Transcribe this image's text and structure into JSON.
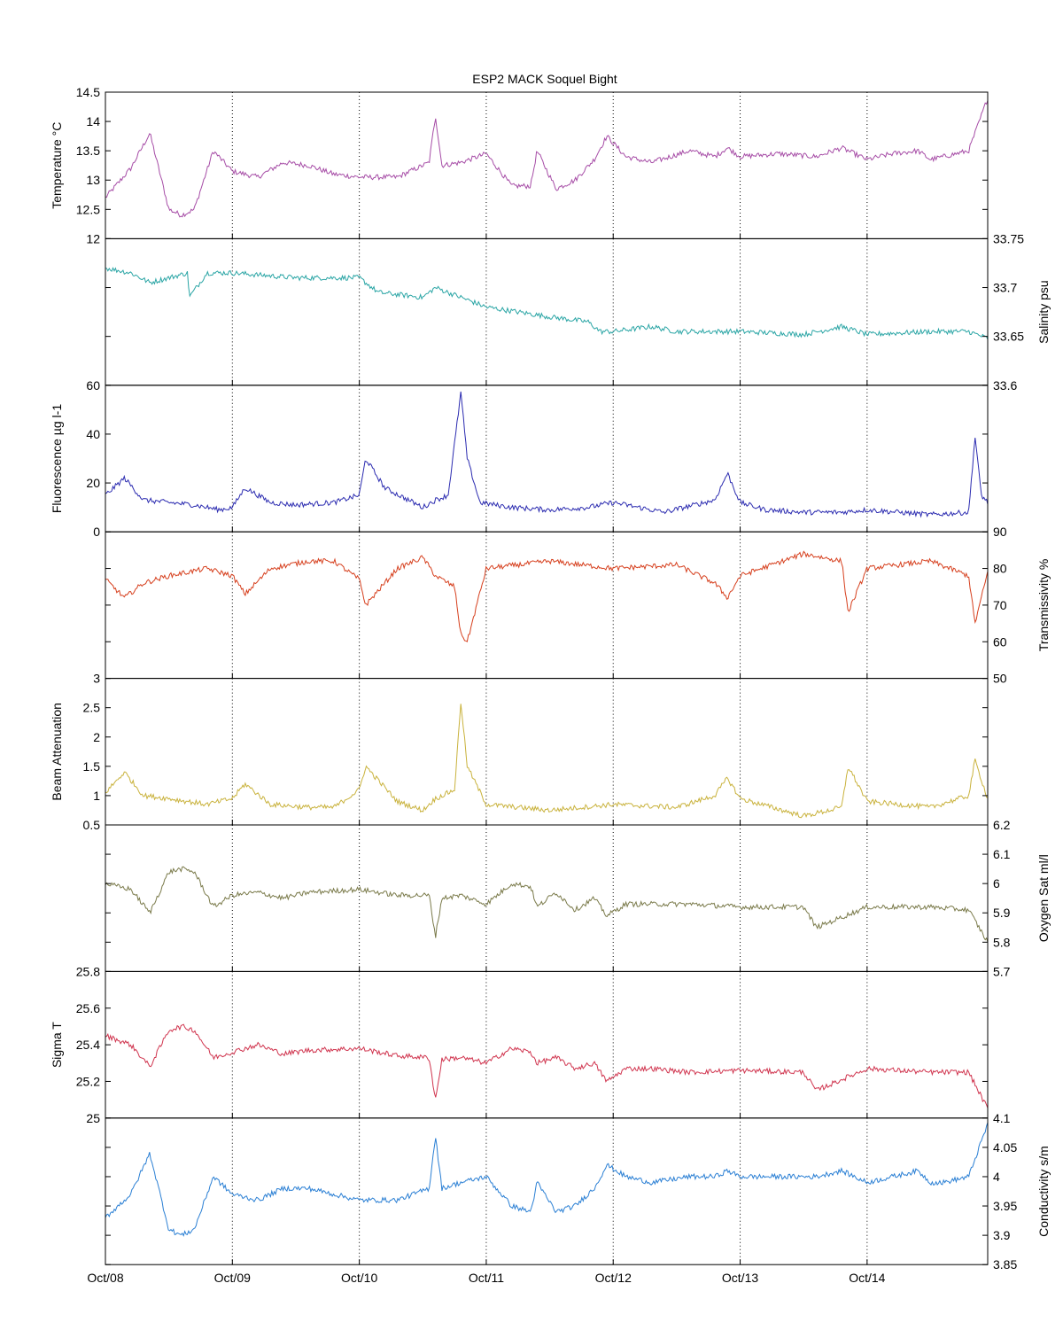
{
  "title": "ESP2 MACK  Soquel Bight",
  "chart_data": [
    {
      "type": "line",
      "ylabel": "Temperature °C",
      "ylabel_side": "left",
      "ylim": [
        12,
        14.5
      ],
      "yticks": [
        "12",
        "12.5",
        "13",
        "13.5",
        "14",
        "14.5"
      ],
      "color": "#a64ca6",
      "x_days": [
        0.0,
        0.2,
        0.35,
        0.5,
        0.6,
        0.7,
        0.85,
        1.0,
        1.2,
        1.4,
        1.6,
        1.8,
        2.0,
        2.3,
        2.55,
        2.6,
        2.65,
        2.8,
        3.0,
        3.2,
        3.35,
        3.4,
        3.55,
        3.7,
        3.85,
        3.95,
        4.1,
        4.3,
        4.6,
        4.8,
        4.9,
        5.0,
        5.3,
        5.6,
        5.8,
        6.0,
        6.2,
        6.4,
        6.5,
        6.6,
        6.8,
        6.95
      ],
      "values": [
        12.7,
        13.2,
        13.8,
        12.5,
        12.4,
        12.5,
        13.5,
        13.15,
        13.05,
        13.3,
        13.25,
        13.1,
        13.05,
        13.05,
        13.3,
        14.1,
        13.25,
        13.3,
        13.45,
        12.9,
        12.9,
        13.5,
        12.85,
        13.0,
        13.35,
        13.75,
        13.4,
        13.3,
        13.5,
        13.4,
        13.55,
        13.4,
        13.45,
        13.4,
        13.55,
        13.35,
        13.45,
        13.5,
        13.35,
        13.4,
        13.5,
        14.4
      ]
    },
    {
      "type": "line",
      "ylabel": "Salinity psu",
      "ylabel_side": "right",
      "ylim": [
        33.6,
        33.75
      ],
      "yticks": [
        "33.6",
        "33.65",
        "33.7",
        "33.75"
      ],
      "color": "#2aa5a5",
      "x_days": [
        0.0,
        0.2,
        0.35,
        0.65,
        0.66,
        0.8,
        1.0,
        1.5,
        2.0,
        2.15,
        2.5,
        2.6,
        2.9,
        3.0,
        3.5,
        3.8,
        3.9,
        4.0,
        4.3,
        4.5,
        5.0,
        5.5,
        5.8,
        6.0,
        6.5,
        6.8,
        6.95
      ],
      "values": [
        33.72,
        33.715,
        33.705,
        33.715,
        33.69,
        33.715,
        33.715,
        33.71,
        33.71,
        33.695,
        33.69,
        33.7,
        33.685,
        33.68,
        33.67,
        33.665,
        33.655,
        33.655,
        33.66,
        33.655,
        33.655,
        33.652,
        33.66,
        33.652,
        33.655,
        33.655,
        33.648
      ]
    },
    {
      "type": "line",
      "ylabel": "Fluorescence µg l-1",
      "ylabel_side": "left",
      "ylim": [
        0,
        60
      ],
      "yticks": [
        "0",
        "20",
        "40",
        "60"
      ],
      "color": "#2b2bb0",
      "x_days": [
        0.0,
        0.15,
        0.3,
        0.5,
        0.7,
        0.9,
        1.0,
        1.1,
        1.3,
        1.5,
        1.8,
        2.0,
        2.05,
        2.2,
        2.5,
        2.6,
        2.7,
        2.8,
        2.85,
        2.95,
        3.2,
        3.5,
        3.8,
        4.0,
        4.4,
        4.8,
        4.9,
        5.0,
        5.2,
        5.5,
        5.8,
        6.0,
        6.5,
        6.8,
        6.85,
        6.9,
        6.95
      ],
      "values": [
        15,
        22,
        13,
        12,
        11,
        9,
        10,
        18,
        12,
        11,
        12,
        15,
        30,
        18,
        10,
        13,
        15,
        57,
        30,
        12,
        10,
        9,
        10,
        12,
        8,
        13,
        24,
        12,
        9,
        8,
        8,
        9,
        7,
        8,
        39,
        15,
        12
      ]
    },
    {
      "type": "line",
      "ylabel": "Transmissivity %",
      "ylabel_side": "right",
      "ylim": [
        50,
        90
      ],
      "yticks": [
        "50",
        "60",
        "70",
        "80",
        "90"
      ],
      "color": "#d63f1d",
      "x_days": [
        0.0,
        0.15,
        0.3,
        0.5,
        0.8,
        1.0,
        1.1,
        1.3,
        1.6,
        1.8,
        2.0,
        2.05,
        2.3,
        2.5,
        2.6,
        2.75,
        2.8,
        2.85,
        3.0,
        3.5,
        4.0,
        4.5,
        4.8,
        4.9,
        5.0,
        5.5,
        5.8,
        5.85,
        6.0,
        6.5,
        6.8,
        6.85,
        6.95
      ],
      "values": [
        77,
        72,
        76,
        78,
        80,
        78,
        73,
        80,
        82,
        82,
        77,
        70,
        80,
        83,
        78,
        75,
        62,
        60,
        80,
        82,
        80,
        81,
        76,
        72,
        78,
        84,
        82,
        68,
        80,
        82,
        78,
        65,
        79
      ]
    },
    {
      "type": "line",
      "ylabel": "Beam Attenuation",
      "ylabel_side": "left",
      "ylim": [
        0.5,
        3
      ],
      "yticks": [
        "0.5",
        "1",
        "1.5",
        "2",
        "2.5",
        "3"
      ],
      "color": "#c9b23c",
      "x_days": [
        0.0,
        0.15,
        0.3,
        0.5,
        0.8,
        1.0,
        1.1,
        1.3,
        1.6,
        1.8,
        2.0,
        2.05,
        2.3,
        2.5,
        2.6,
        2.75,
        2.8,
        2.85,
        3.0,
        3.5,
        4.0,
        4.5,
        4.8,
        4.9,
        5.0,
        5.5,
        5.8,
        5.85,
        6.0,
        6.5,
        6.8,
        6.85,
        6.95
      ],
      "values": [
        1.05,
        1.4,
        1.0,
        0.95,
        0.85,
        0.95,
        1.2,
        0.85,
        0.8,
        0.8,
        1.1,
        1.5,
        0.9,
        0.75,
        0.95,
        1.1,
        2.6,
        1.5,
        0.85,
        0.75,
        0.85,
        0.8,
        1.0,
        1.3,
        0.95,
        0.65,
        0.8,
        1.5,
        0.9,
        0.8,
        1.0,
        1.6,
        0.95
      ]
    },
    {
      "type": "line",
      "ylabel": "Oxygen Sat ml/l",
      "ylabel_side": "right",
      "ylim": [
        5.7,
        6.2
      ],
      "yticks": [
        "5.7",
        "5.8",
        "5.9",
        "6",
        "6.1",
        "6.2"
      ],
      "color": "#7a7a4a",
      "x_days": [
        0.0,
        0.2,
        0.35,
        0.5,
        0.6,
        0.7,
        0.85,
        1.0,
        1.2,
        1.4,
        1.6,
        2.0,
        2.3,
        2.55,
        2.6,
        2.65,
        2.8,
        3.0,
        3.2,
        3.35,
        3.4,
        3.55,
        3.7,
        3.85,
        3.95,
        4.1,
        4.3,
        4.6,
        5.0,
        5.5,
        5.6,
        6.0,
        6.5,
        6.8,
        6.95
      ],
      "values": [
        6.0,
        5.98,
        5.9,
        6.04,
        6.05,
        6.04,
        5.92,
        5.96,
        5.97,
        5.95,
        5.97,
        5.98,
        5.96,
        5.96,
        5.82,
        5.95,
        5.96,
        5.93,
        6.0,
        5.99,
        5.92,
        5.97,
        5.91,
        5.95,
        5.89,
        5.93,
        5.93,
        5.93,
        5.92,
        5.92,
        5.85,
        5.92,
        5.92,
        5.91,
        5.8
      ]
    },
    {
      "type": "line",
      "ylabel": "Sigma T",
      "ylabel_side": "left",
      "ylim": [
        25,
        25.8
      ],
      "yticks": [
        "25",
        "25.2",
        "25.4",
        "25.6",
        "25.8"
      ],
      "color": "#d0344e",
      "x_days": [
        0.0,
        0.2,
        0.35,
        0.5,
        0.6,
        0.7,
        0.85,
        1.0,
        1.2,
        1.4,
        1.6,
        2.0,
        2.3,
        2.55,
        2.6,
        2.65,
        2.8,
        3.0,
        3.2,
        3.35,
        3.4,
        3.55,
        3.7,
        3.85,
        3.95,
        4.1,
        4.3,
        4.6,
        5.0,
        5.5,
        5.6,
        6.0,
        6.5,
        6.8,
        6.95
      ],
      "values": [
        25.45,
        25.4,
        25.28,
        25.48,
        25.5,
        25.48,
        25.33,
        25.36,
        25.4,
        25.35,
        25.37,
        25.38,
        25.34,
        25.33,
        25.1,
        25.32,
        25.33,
        25.3,
        25.38,
        25.36,
        25.3,
        25.33,
        25.27,
        25.3,
        25.2,
        25.27,
        25.27,
        25.25,
        25.26,
        25.25,
        25.15,
        25.27,
        25.25,
        25.25,
        25.05
      ]
    },
    {
      "type": "line",
      "ylabel": "Conductivity s/m",
      "ylabel_side": "right",
      "ylim": [
        3.85,
        4.1
      ],
      "yticks": [
        "3.85",
        "3.9",
        "3.95",
        "4",
        "4.05",
        "4.1"
      ],
      "xlabel": "",
      "color": "#2a7fd4",
      "x_days": [
        0.0,
        0.2,
        0.35,
        0.5,
        0.6,
        0.7,
        0.85,
        1.0,
        1.2,
        1.4,
        1.6,
        1.8,
        2.0,
        2.3,
        2.55,
        2.6,
        2.65,
        2.8,
        3.0,
        3.2,
        3.35,
        3.4,
        3.55,
        3.7,
        3.85,
        3.95,
        4.1,
        4.3,
        4.6,
        4.8,
        4.9,
        5.0,
        5.3,
        5.6,
        5.8,
        6.0,
        6.2,
        6.4,
        6.5,
        6.6,
        6.8,
        6.95
      ],
      "values": [
        3.93,
        3.97,
        4.04,
        3.91,
        3.9,
        3.91,
        4.0,
        3.97,
        3.96,
        3.98,
        3.98,
        3.97,
        3.96,
        3.96,
        3.98,
        4.07,
        3.98,
        3.99,
        4.0,
        3.95,
        3.94,
        3.99,
        3.94,
        3.95,
        3.98,
        4.02,
        4.0,
        3.99,
        4.0,
        4.0,
        4.01,
        4.0,
        4.0,
        4.0,
        4.01,
        3.99,
        4.0,
        4.01,
        3.99,
        3.99,
        4.0,
        4.09
      ]
    }
  ],
  "x_axis": {
    "ticks": [
      "Oct/08",
      "Oct/09",
      "Oct/10",
      "Oct/11",
      "Oct/12",
      "Oct/13",
      "Oct/14"
    ],
    "xlim_days": [
      0,
      6.95
    ]
  }
}
